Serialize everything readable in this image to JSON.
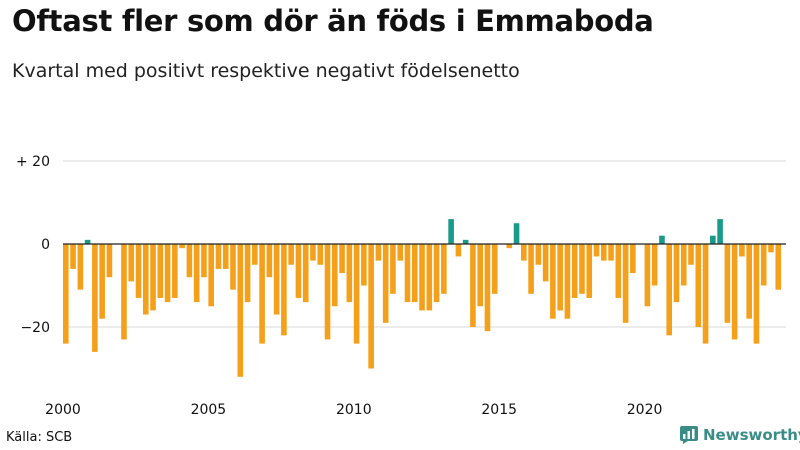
{
  "header": {
    "title": "Oftast fler som dör än föds i Emmaboda",
    "subtitle": "Kvartal med positivt respektive negativt födelsenetto"
  },
  "footer": {
    "source": "Källa: SCB",
    "brand": "Newsworthy"
  },
  "colors": {
    "negative": "#f5a01a",
    "positive": "#1a9a8a",
    "grid": "#d8d8d8",
    "zero_line": "#222222",
    "brand": "#3a8d87"
  },
  "chart_data": {
    "type": "bar",
    "title": "Oftast fler som dör än föds i Emmaboda",
    "subtitle": "Kvartal med positivt respektive negativt födelsenetto",
    "xlabel": "",
    "ylabel": "",
    "ylim": [
      -33,
      22
    ],
    "y_ticks": [
      {
        "value": 20,
        "label": "+ 20"
      },
      {
        "value": 0,
        "label": "0"
      },
      {
        "value": -20,
        "label": "−20"
      }
    ],
    "x_ticks": [
      {
        "index": 0,
        "label": "2000"
      },
      {
        "index": 20,
        "label": "2005"
      },
      {
        "index": 40,
        "label": "2010"
      },
      {
        "index": 60,
        "label": "2015"
      },
      {
        "index": 80,
        "label": "2020"
      }
    ],
    "start": "2000 Q1",
    "values": [
      -24,
      -6,
      -11,
      1,
      -26,
      -18,
      -8,
      0,
      -23,
      -9,
      -13,
      -17,
      -16,
      -13,
      -14,
      -13,
      -1,
      -8,
      -14,
      -8,
      -15,
      -6,
      -6,
      -11,
      -32,
      -14,
      -5,
      -24,
      -8,
      -17,
      -22,
      -5,
      -13,
      -14,
      -4,
      -5,
      -23,
      -15,
      -7,
      -14,
      -24,
      -10,
      -30,
      -4,
      -19,
      -12,
      -4,
      -14,
      -14,
      -16,
      -16,
      -14,
      -12,
      6,
      -3,
      1,
      -20,
      -15,
      -21,
      -12,
      0,
      -1,
      5,
      -4,
      -12,
      -5,
      -9,
      -18,
      -16,
      -18,
      -13,
      -12,
      -13,
      -3,
      -4,
      -4,
      -13,
      -19,
      -7,
      0,
      -15,
      -10,
      2,
      -22,
      -14,
      -10,
      -5,
      -20,
      -24,
      2,
      6,
      -19,
      -23,
      -3,
      -18,
      -24,
      -10,
      -2,
      -11
    ]
  }
}
